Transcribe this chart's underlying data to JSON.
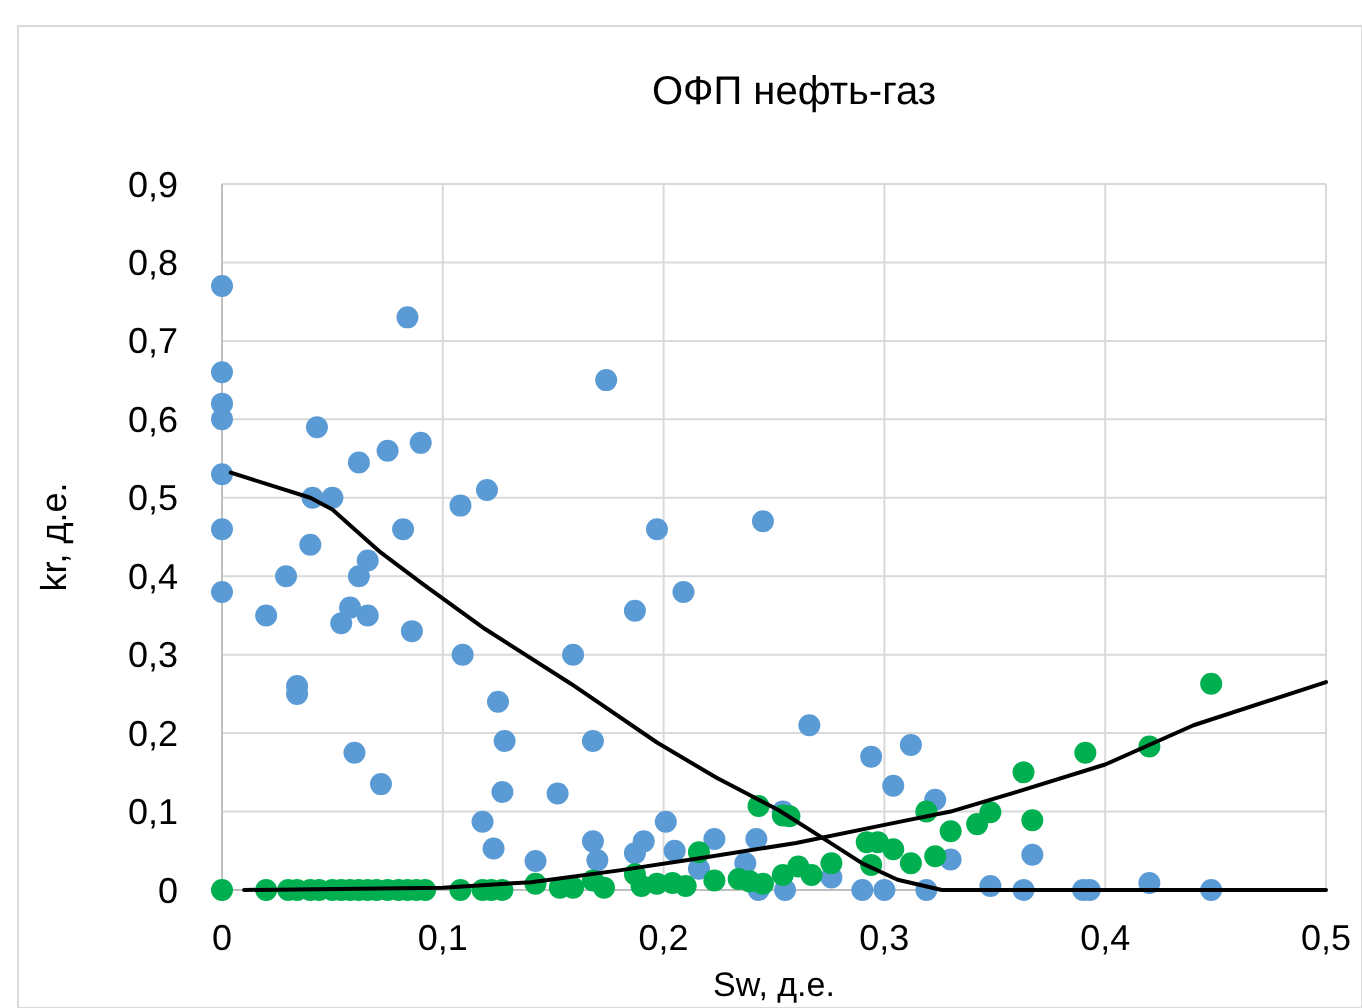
{
  "chart_data": {
    "type": "scatter",
    "title": "ОФП нефть-газ",
    "xlabel": "Sw, д.е.",
    "ylabel": "kr, д.е.",
    "xlim": [
      0,
      0.5
    ],
    "ylim": [
      0,
      0.9
    ],
    "xticks": [
      0,
      {
        "value": 0.1,
        "label": "0,1"
      },
      {
        "value": 0.2,
        "label": "0,2"
      },
      {
        "value": 0.3,
        "label": "0,3"
      },
      {
        "value": 0.4,
        "label": "0,4"
      },
      {
        "value": 0.5,
        "label": "0,5"
      }
    ],
    "yticks": [
      0,
      {
        "value": 0.1,
        "label": "0,1"
      },
      {
        "value": 0.2,
        "label": "0,2"
      },
      {
        "value": 0.3,
        "label": "0,3"
      },
      {
        "value": 0.4,
        "label": "0,4"
      },
      {
        "value": 0.5,
        "label": "0,5"
      },
      {
        "value": 0.6,
        "label": "0,6"
      },
      {
        "value": 0.7,
        "label": "0,7"
      },
      {
        "value": 0.8,
        "label": "0,8"
      },
      {
        "value": 0.9,
        "label": "0,9"
      }
    ],
    "grid": true,
    "marker": "circle",
    "series": [
      {
        "color": "#5b9bd5",
        "x": [
          0,
          0,
          0,
          0,
          0,
          0,
          0,
          0.084,
          0.174,
          0.043,
          0.075,
          0.09,
          0.062,
          0.041,
          0.05,
          0.12,
          0.108,
          0.082,
          0.04,
          0.066,
          0.062,
          0.029,
          0.02,
          0.058,
          0.066,
          0.054,
          0.086,
          0.034,
          0.034,
          0.109,
          0.06,
          0.072,
          0.125,
          0.128,
          0.127,
          0.118,
          0.123,
          0.142,
          0.152,
          0.159,
          0.168,
          0.168,
          0.17,
          0.187,
          0.197,
          0.209,
          0.245,
          0.187,
          0.191,
          0.201,
          0.205,
          0.216,
          0.223,
          0.237,
          0.242,
          0.243,
          0.254,
          0.255,
          0.266,
          0.276,
          0.294,
          0.304,
          0.312,
          0.323,
          0.33,
          0.29,
          0.3,
          0.319,
          0.348,
          0.363,
          0.367,
          0.39,
          0.393,
          0.42,
          0.448
        ],
        "values": [
          0.77,
          0.66,
          0.62,
          0.6,
          0.53,
          0.46,
          0.38,
          0.73,
          0.65,
          0.59,
          0.56,
          0.57,
          0.545,
          0.5,
          0.5,
          0.51,
          0.49,
          0.46,
          0.44,
          0.42,
          0.4,
          0.4,
          0.35,
          0.36,
          0.35,
          0.34,
          0.33,
          0.26,
          0.25,
          0.3,
          0.175,
          0.135,
          0.24,
          0.19,
          0.125,
          0.087,
          0.053,
          0.037,
          0.123,
          0.3,
          0.19,
          0.062,
          0.038,
          0.356,
          0.46,
          0.38,
          0.47,
          0.047,
          0.062,
          0.087,
          0.05,
          0.027,
          0.065,
          0.034,
          0.065,
          0,
          0.1,
          0,
          0.21,
          0.016,
          0.17,
          0.133,
          0.185,
          0.115,
          0.039,
          0,
          0,
          0,
          0.005,
          0,
          0.045,
          0,
          0,
          0.009,
          0
        ]
      },
      {
        "color": "#00b050",
        "x": [
          0,
          0.02,
          0.03,
          0.034,
          0.04,
          0.044,
          0.05,
          0.054,
          0.058,
          0.062,
          0.066,
          0.07,
          0.075,
          0.08,
          0.084,
          0.088,
          0.092,
          0.108,
          0.118,
          0.122,
          0.127,
          0.142,
          0.153,
          0.159,
          0.168,
          0.173,
          0.187,
          0.19,
          0.197,
          0.204,
          0.21,
          0.216,
          0.223,
          0.234,
          0.239,
          0.245,
          0.243,
          0.254,
          0.257,
          0.254,
          0.261,
          0.267,
          0.276,
          0.292,
          0.297,
          0.304,
          0.294,
          0.312,
          0.319,
          0.323,
          0.33,
          0.342,
          0.348,
          0.363,
          0.367,
          0.391,
          0.42,
          0.448
        ],
        "values": [
          0,
          0,
          0,
          0,
          0,
          0,
          0,
          0,
          0,
          0,
          0,
          0,
          0,
          0,
          0,
          0,
          0,
          0,
          0,
          0,
          0,
          0.008,
          0.003,
          0.003,
          0.012,
          0.003,
          0.02,
          0.005,
          0.008,
          0.009,
          0.005,
          0.048,
          0.012,
          0.014,
          0.011,
          0.008,
          0.107,
          0.095,
          0.094,
          0.019,
          0.03,
          0.019,
          0.034,
          0.061,
          0.061,
          0.052,
          0.032,
          0.034,
          0.1,
          0.043,
          0.075,
          0.084,
          0.099,
          0.15,
          0.089,
          0.175,
          0.183,
          0.263
        ]
      },
      {
        "type": "line",
        "color": "#000000",
        "marker": "none",
        "x": [
          0.004,
          0.04,
          0.05,
          0.06,
          0.072,
          0.091,
          0.119,
          0.158,
          0.197,
          0.224,
          0.252,
          0.275,
          0.29,
          0.306,
          0.326,
          0.5
        ],
        "values": [
          0.532,
          0.5,
          0.485,
          0.46,
          0.43,
          0.39,
          0.333,
          0.263,
          0.188,
          0.143,
          0.102,
          0.061,
          0.034,
          0.013,
          0,
          0
        ]
      },
      {
        "type": "line",
        "color": "#000000",
        "marker": "none",
        "x": [
          0.01,
          0.1,
          0.14,
          0.18,
          0.22,
          0.26,
          0.3,
          0.33,
          0.36,
          0.4,
          0.44,
          0.5
        ],
        "values": [
          0,
          0.003,
          0.01,
          0.025,
          0.042,
          0.06,
          0.083,
          0.1,
          0.125,
          0.16,
          0.21,
          0.265
        ]
      }
    ]
  }
}
